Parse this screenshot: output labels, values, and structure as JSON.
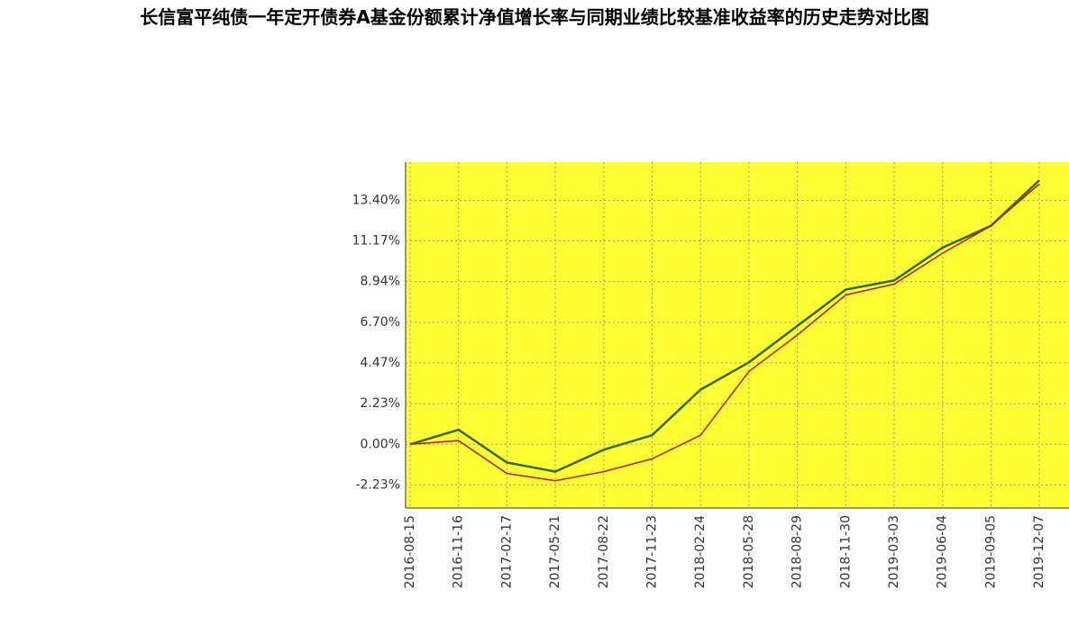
{
  "chart_data": {
    "type": "line",
    "title": "长信富平纯债一年定开债券A基金份额累计净值增长率与同期业绩比较基准收益率的历史走势对比图",
    "categories": [
      "2016-08-15",
      "2016-11-16",
      "2017-02-17",
      "2017-05-21",
      "2017-08-22",
      "2017-11-23",
      "2018-02-24",
      "2018-05-28",
      "2018-08-29",
      "2018-11-30",
      "2019-03-03",
      "2019-06-04",
      "2019-09-05",
      "2019-12-07"
    ],
    "series": [
      {
        "color": "#2e6b1e",
        "values": [
          0,
          0.8,
          -1.0,
          -1.5,
          -0.3,
          0.5,
          3.0,
          4.5,
          6.5,
          8.5,
          9.0,
          10.8,
          12.0,
          14.5
        ]
      },
      {
        "color": "#cc1111",
        "values": [
          0,
          0.2,
          -1.6,
          -2.0,
          -1.5,
          -0.8,
          0.5,
          4.0,
          6.0,
          8.2,
          8.8,
          10.5,
          12.0,
          14.3
        ]
      }
    ],
    "ylim": [
      -3.5,
      15.5
    ],
    "yticks": [
      {
        "value": -2.23,
        "label": "-2.23%"
      },
      {
        "value": 0,
        "label": "0.00%"
      },
      {
        "value": 2.23,
        "label": "2.23%"
      },
      {
        "value": 4.47,
        "label": "4.47%"
      },
      {
        "value": 6.7,
        "label": "6.70%"
      },
      {
        "value": 8.94,
        "label": "8.94%"
      },
      {
        "value": 11.17,
        "label": "11.17%"
      },
      {
        "value": 13.4,
        "label": "13.40%"
      }
    ],
    "grid": true
  }
}
